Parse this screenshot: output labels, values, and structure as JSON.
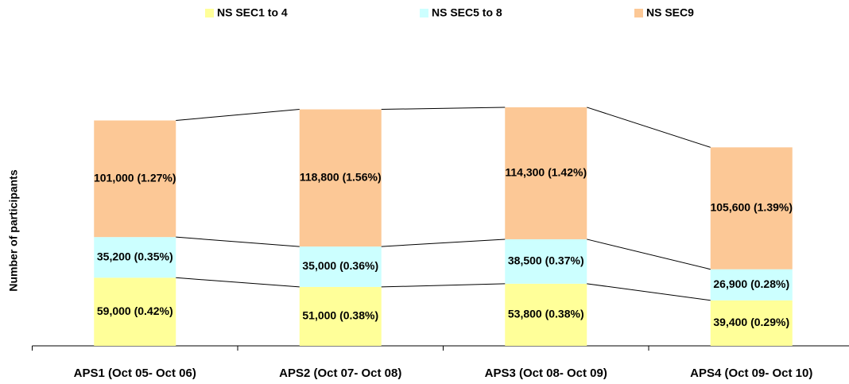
{
  "chart_data": {
    "type": "stacked-bar",
    "y_label": "Number of participants",
    "categories": [
      "APS1 (Oct 05- Oct 06)",
      "APS2 (Oct 07- Oct 08)",
      "APS3 (Oct 08- Oct 09)",
      "APS4 (Oct 09- Oct 10)"
    ],
    "series": [
      {
        "name": "NS SEC1 to 4",
        "color": "#ffff99",
        "values": [
          59000,
          51000,
          53800,
          39400
        ],
        "value_labels": [
          "59,000 (0.42%)",
          "51,000 (0.38%)",
          "53,800 (0.38%)",
          "39,400 (0.29%)"
        ]
      },
      {
        "name": "NS SEC5 to 8",
        "color": "#ccffff",
        "values": [
          35200,
          35000,
          38500,
          26900
        ],
        "value_labels": [
          "35,200 (0.35%)",
          "35,000 (0.36%)",
          "38,500 (0.37%)",
          "26,900 (0.28%)"
        ]
      },
      {
        "name": "NS SEC9",
        "color": "#fcc896",
        "values": [
          101000,
          118800,
          114300,
          105600
        ],
        "value_labels": [
          "101,000 (1.27%)",
          "118,800 (1.56%)",
          "114,300 (1.42%)",
          "105,600 (1.39%)"
        ]
      }
    ],
    "ylim": [
      0,
      210000
    ]
  }
}
